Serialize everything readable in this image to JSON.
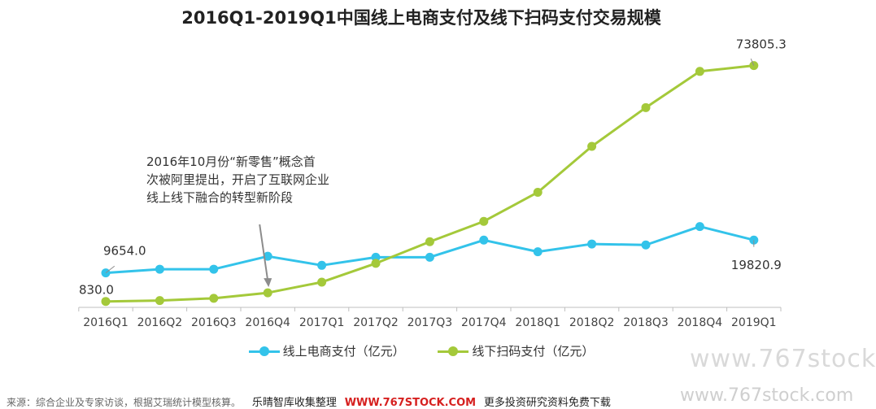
{
  "chart_data": {
    "type": "line",
    "title": "2016Q1-2019Q1中国线上电商支付及线下扫码支付交易规模",
    "categories": [
      "2016Q1",
      "2016Q2",
      "2016Q3",
      "2016Q4",
      "2017Q1",
      "2017Q2",
      "2017Q3",
      "2017Q4",
      "2018Q1",
      "2018Q2",
      "2018Q3",
      "2018Q4",
      "2019Q1"
    ],
    "series": [
      {
        "name": "线上电商支付（亿元）",
        "color": "#33c3ea",
        "values": [
          9654.0,
          10800,
          10800,
          14800,
          12000,
          14500,
          14500,
          19800,
          16200,
          18600,
          18300,
          24000,
          19820.9
        ]
      },
      {
        "name": "线下扫码支付（亿元）",
        "color": "#a4c93a",
        "values": [
          830.0,
          1100,
          1800,
          3500,
          6800,
          12600,
          19300,
          25600,
          34600,
          48800,
          60800,
          72000,
          73805.3
        ]
      }
    ],
    "data_labels": [
      {
        "series": 0,
        "index": 0,
        "text": "9654.0"
      },
      {
        "series": 1,
        "index": 0,
        "text": "830.0"
      },
      {
        "series": 1,
        "index": 12,
        "text": "73805.3"
      },
      {
        "series": 0,
        "index": 12,
        "text": "19820.9"
      }
    ],
    "annotation": {
      "lines": [
        "2016年10月份“新零售”概念首",
        "次被阿里提出，开启了互联网企业",
        "线上线下融合的转型新阶段"
      ],
      "points_to": "2016Q4"
    },
    "ylim": [
      0,
      80000
    ],
    "grid": false,
    "legend_position": "bottom"
  },
  "footer": {
    "source": "来源：综合企业及专家访谈，根据艾瑞统计模型核算。",
    "promo_a": "乐晴智库收集整理",
    "promo_site": "WWW.767STOCK.COM",
    "promo_b": "更多投资研究资料免费下载"
  },
  "watermarks": {
    "top": "www.767stock",
    "bottom": "www.767stock.com"
  }
}
